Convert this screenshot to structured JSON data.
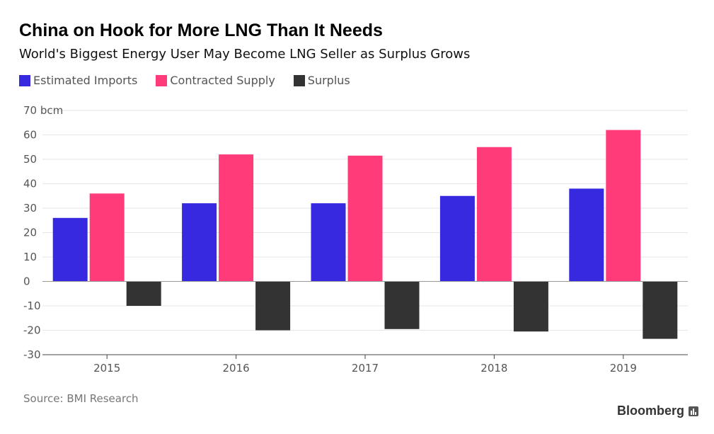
{
  "title": "China on Hook for More LNG Than It Needs",
  "subtitle": "World's Biggest Energy User May Become LNG Seller as Surplus Grows",
  "source": "Source: BMI Research",
  "brand": "Bloomberg",
  "colors": {
    "imports": "#3629e0",
    "contracted": "#ff3b7a",
    "surplus": "#333333",
    "grid": "#e6e6e6",
    "axis": "#444444",
    "tick_text": "#555555"
  },
  "chart_data": {
    "type": "bar",
    "categories": [
      "2015",
      "2016",
      "2017",
      "2018",
      "2019"
    ],
    "series": [
      {
        "name": "Estimated Imports",
        "values": [
          26,
          32,
          32,
          35,
          38
        ]
      },
      {
        "name": "Contracted Supply",
        "values": [
          36,
          52,
          51.5,
          55,
          62
        ]
      },
      {
        "name": "Surplus",
        "values": [
          -10,
          -20,
          -19.5,
          -20.5,
          -23.5
        ]
      }
    ],
    "yticks": [
      "70 bcm",
      "60",
      "50",
      "40",
      "30",
      "20",
      "10",
      "0",
      "-10",
      "-20",
      "-30"
    ],
    "ytick_values": [
      70,
      60,
      50,
      40,
      30,
      20,
      10,
      0,
      -10,
      -20,
      -30
    ],
    "ylim": [
      -30,
      70
    ],
    "grid": true,
    "legend_position": "top-left"
  }
}
